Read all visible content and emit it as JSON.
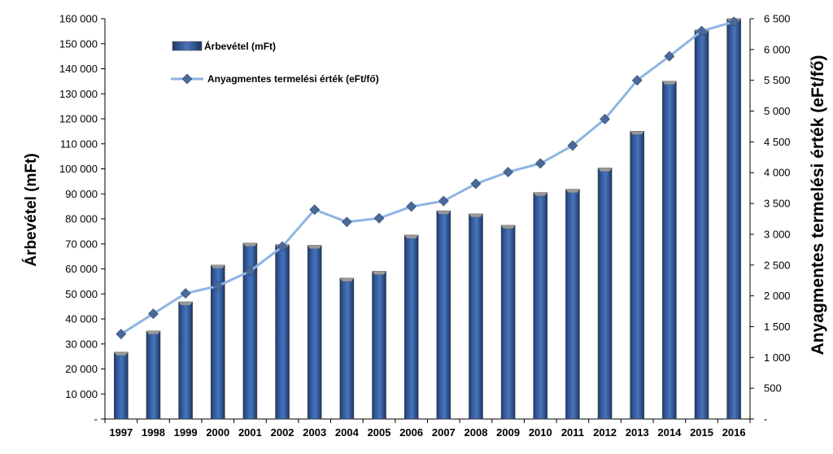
{
  "chart_data": {
    "type": "bar+line",
    "categories": [
      "1997",
      "1998",
      "1999",
      "2000",
      "2001",
      "2002",
      "2003",
      "2004",
      "2005",
      "2006",
      "2007",
      "2008",
      "2009",
      "2010",
      "2011",
      "2012",
      "2013",
      "2014",
      "2015",
      "2016"
    ],
    "series": [
      {
        "name": "Árbevétel (mFt)",
        "type": "bar",
        "axis": "left",
        "color": "#2f5597",
        "values": [
          26700,
          35200,
          46800,
          61500,
          70300,
          69700,
          69400,
          56300,
          59000,
          73500,
          83200,
          82000,
          77400,
          90500,
          91800,
          100300,
          115000,
          135000,
          155500,
          160000
        ]
      },
      {
        "name": "Anyagmentes termelési érték (eFt/fő)",
        "type": "line",
        "axis": "right",
        "color": "#8eb4e3",
        "values": [
          1380,
          1710,
          2040,
          2160,
          2400,
          2800,
          3400,
          3200,
          3260,
          3450,
          3540,
          3820,
          4010,
          4150,
          4440,
          4870,
          5500,
          5890,
          6300,
          6450
        ]
      }
    ],
    "ylabel": "Árbevétel (mFt)",
    "y2label": "Anyagmentes termelési érték (eFt/fő)",
    "ylim": [
      0,
      160000
    ],
    "y2lim": [
      0,
      6500
    ],
    "yticks": [
      "-",
      "10 000",
      "20 000",
      "30 000",
      "40 000",
      "50 000",
      "60 000",
      "70 000",
      "80 000",
      "90 000",
      "100 000",
      "110 000",
      "120 000",
      "130 000",
      "140 000",
      "150 000",
      "160 000"
    ],
    "y2ticks": [
      "-",
      "500",
      "1 000",
      "1 500",
      "2 000",
      "2 500",
      "3 000",
      "3 500",
      "4 000",
      "4 500",
      "5 000",
      "5 500",
      "6 000",
      "6 500"
    ],
    "legend": {
      "position": "top-left",
      "entries": [
        "Árbevétel (mFt)",
        "Anyagmentes termelési érték (eFt/fő)"
      ]
    },
    "grid": false
  }
}
